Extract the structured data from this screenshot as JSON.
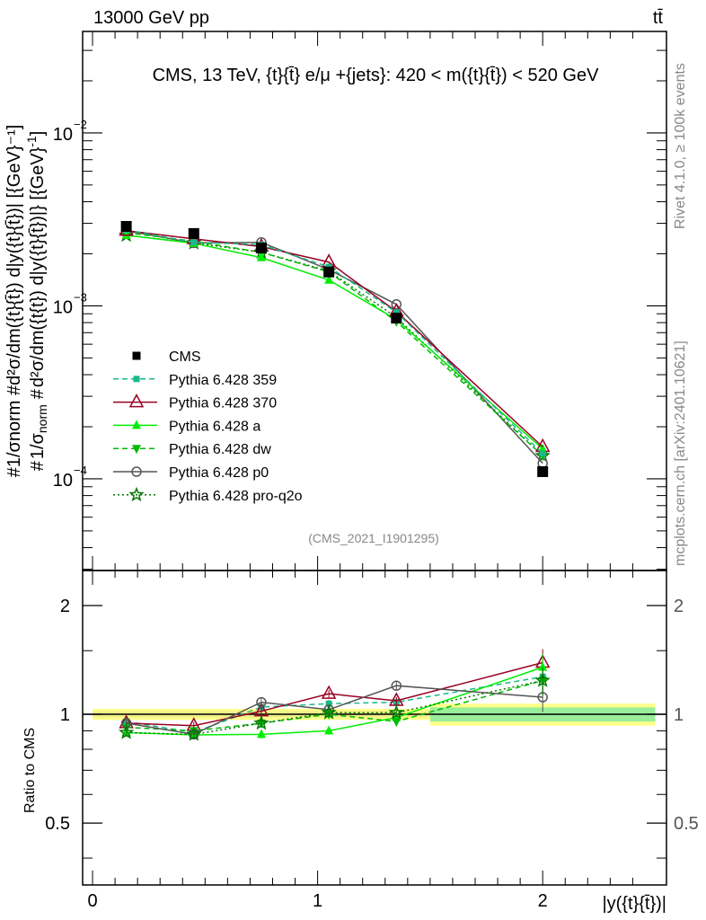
{
  "header": {
    "left": "13000 GeV pp",
    "right": "tt̄"
  },
  "side": {
    "rivet": "Rivet 4.1.0, ≥ 100k events",
    "mcplots": "mcplots.cern.ch [arXiv:2401.10621]"
  },
  "chart_data": [
    {
      "type": "line",
      "title": "CMS, 13 TeV, {t}{t̄} e/μ +{jets}: 420 < m({t}{t̄}) < 520 GeV",
      "annotation": "(CMS_2021_I1901295)",
      "ylabel": "#1/σnorm #d²σ/dm({t}{t̄}) d|y({t}{t̄})| [{GeV}⁻¹]",
      "ylabel_parts": {
        "frac1_num": "1",
        "frac1_den": "σ",
        "den_sub": "norm",
        "frac2_num": "d²σ",
        "frac2_den": "dm({t",
        "hash": "#",
        "rest": "{t}) d|y({t}{t̄})|} [{GeV}",
        "exp": "-1",
        "close": "]"
      },
      "yscale": "log",
      "ylim": [
        2.95e-05,
        0.0386
      ],
      "xlim": [
        -0.044,
        2.55
      ],
      "ytick_labels": [
        {
          "v": 0.01,
          "mant": "10",
          "exp": "−2"
        },
        {
          "v": 0.001,
          "mant": "10",
          "exp": "−3"
        },
        {
          "v": 0.0001,
          "mant": "10",
          "exp": "−4"
        }
      ],
      "legend_placement": "center-left",
      "x": [
        0.15,
        0.45,
        0.75,
        1.05,
        1.35,
        2.0
      ],
      "bin_edges": [
        0,
        0.3,
        0.6,
        0.9,
        1.2,
        1.5,
        2.5
      ],
      "series": [
        {
          "name": "CMS",
          "color": "#000000",
          "marker": "square",
          "dash": "",
          "values": [
            0.00288,
            0.00262,
            0.00216,
            0.00157,
            0.00085,
            0.00011
          ]
        },
        {
          "name": "Pythia 6.428 359",
          "color": "#19b98a",
          "marker": "smallsquare",
          "dash": "6,4",
          "values": [
            0.00275,
            0.00233,
            0.00226,
            0.00168,
            0.000918,
            0.00014
          ]
        },
        {
          "name": "Pythia 6.428 370",
          "color": "#990022",
          "marker": "opentriangle",
          "dash": "",
          "values": [
            0.00272,
            0.00244,
            0.0022,
            0.00179,
            0.000927,
            0.000153
          ]
        },
        {
          "name": "Pythia 6.428 a",
          "color": "#00ee00",
          "marker": "triangle",
          "dash": "",
          "values": [
            0.00256,
            0.0023,
            0.0019,
            0.00141,
            0.000833,
            0.000149
          ]
        },
        {
          "name": "Pythia 6.428 dw",
          "color": "#00bb00",
          "marker": "downtriangle",
          "dash": "6,4",
          "values": [
            0.00265,
            0.00236,
            0.00204,
            0.00157,
            0.000812,
            0.000136
          ]
        },
        {
          "name": "Pythia 6.428 p0",
          "color": "#555555",
          "marker": "opencircle",
          "dash": "",
          "values": [
            0.00272,
            0.00231,
            0.00233,
            0.00162,
            0.00102,
            0.000123
          ]
        },
        {
          "name": "Pythia 6.428 pro-q2o",
          "color": "#007700",
          "marker": "star",
          "dash": "2,3",
          "values": [
            0.00256,
            0.00231,
            0.00204,
            0.00159,
            0.000859,
            0.000136
          ]
        }
      ]
    },
    {
      "type": "line",
      "ylabel": "Ratio to CMS",
      "xlabel": "|y({t}{t̄})|",
      "yscale": "log",
      "ylim": [
        0.337,
        2.5
      ],
      "xlim": [
        -0.044,
        2.55
      ],
      "ytick_labels": [
        {
          "v": 2,
          "label": "2"
        },
        {
          "v": 1,
          "label": "1"
        },
        {
          "v": 0.5,
          "label": "0.5"
        }
      ],
      "xtick_labels": [
        {
          "v": 0,
          "label": "0"
        },
        {
          "v": 1,
          "label": "1"
        },
        {
          "v": 2,
          "label": "2"
        }
      ],
      "band_outer": [
        0.035,
        0.035,
        0.035,
        0.035,
        0.035,
        0.07
      ],
      "band_inner": [
        0.02,
        0.02,
        0.02,
        0.02,
        0.02,
        0.045
      ],
      "ratios": [
        [
          0.955,
          0.89,
          1.047,
          1.07,
          1.08,
          1.27
        ],
        [
          0.945,
          0.93,
          1.02,
          1.14,
          1.09,
          1.39
        ],
        [
          0.89,
          0.877,
          0.88,
          0.9,
          0.98,
          1.35
        ],
        [
          0.92,
          0.9,
          0.945,
          1.0,
          0.955,
          1.24
        ],
        [
          0.945,
          0.88,
          1.08,
          1.03,
          1.2,
          1.115
        ],
        [
          0.89,
          0.88,
          0.945,
          1.01,
          1.01,
          1.24
        ]
      ]
    }
  ]
}
